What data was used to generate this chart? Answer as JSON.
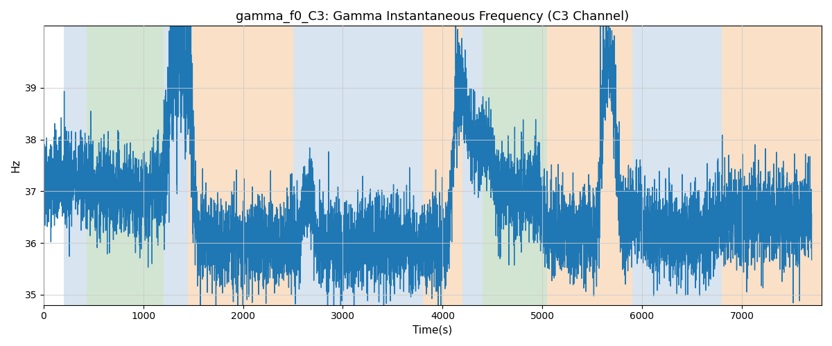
{
  "title": "gamma_f0_C3: Gamma Instantaneous Frequency (C3 Channel)",
  "xlabel": "Time(s)",
  "ylabel": "Hz",
  "xlim": [
    0,
    7800
  ],
  "ylim": [
    34.8,
    40.2
  ],
  "yticks": [
    35,
    36,
    37,
    38,
    39
  ],
  "bg_regions": [
    {
      "xmin": 200,
      "xmax": 430,
      "color": "#aac4dd",
      "alpha": 0.45
    },
    {
      "xmin": 430,
      "xmax": 1200,
      "color": "#90c090",
      "alpha": 0.4
    },
    {
      "xmin": 1200,
      "xmax": 1450,
      "color": "#aac4dd",
      "alpha": 0.45
    },
    {
      "xmin": 1450,
      "xmax": 2500,
      "color": "#f5c899",
      "alpha": 0.55
    },
    {
      "xmin": 2500,
      "xmax": 3800,
      "color": "#aac4dd",
      "alpha": 0.45
    },
    {
      "xmin": 3800,
      "xmax": 4200,
      "color": "#f5c899",
      "alpha": 0.55
    },
    {
      "xmin": 4200,
      "xmax": 4400,
      "color": "#aac4dd",
      "alpha": 0.45
    },
    {
      "xmin": 4400,
      "xmax": 5050,
      "color": "#90c090",
      "alpha": 0.4
    },
    {
      "xmin": 5050,
      "xmax": 5900,
      "color": "#f5c899",
      "alpha": 0.55
    },
    {
      "xmin": 5900,
      "xmax": 6800,
      "color": "#aac4dd",
      "alpha": 0.45
    },
    {
      "xmin": 6800,
      "xmax": 7800,
      "color": "#f5c899",
      "alpha": 0.55
    }
  ],
  "line_color": "#1f77b4",
  "line_width": 1.0,
  "grid": true,
  "grid_color": "#cccccc",
  "grid_alpha": 0.8,
  "title_fontsize": 13,
  "axis_fontsize": 11,
  "seed": 42,
  "n_points": 7800,
  "base_freq": 36.5,
  "noise_std": 0.45
}
